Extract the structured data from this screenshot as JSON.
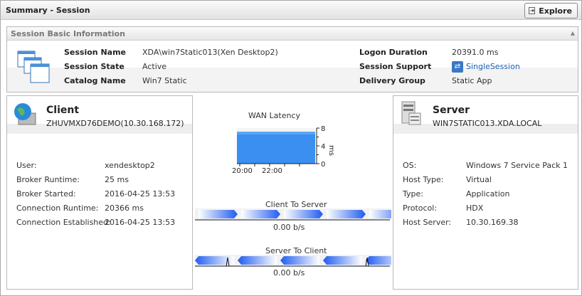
{
  "header": {
    "title": "Summary  - Session",
    "explore_label": "Explore"
  },
  "basic": {
    "title": "Session Basic Information",
    "left": [
      {
        "label": "Session Name",
        "value": "XDA\\win7Static013(Xen Desktop2)"
      },
      {
        "label": "Session State",
        "value": "Active"
      },
      {
        "label": "Catalog Name",
        "value": "Win7 Static"
      }
    ],
    "right": [
      {
        "label": "Logon Duration",
        "value": "20391.0 ms"
      },
      {
        "label": "Session Support",
        "value": "SingleSession",
        "icon": "session-support-icon"
      },
      {
        "label": "Delivery Group",
        "value": "Static App"
      }
    ]
  },
  "client": {
    "title": "Client",
    "subtitle": "ZHUVMXD76DEMO(10.30.168.172)",
    "rows": [
      {
        "label": "User:",
        "value": "xendesktop2"
      },
      {
        "label": "Broker Runtime:",
        "value": "25 ms"
      },
      {
        "label": "Broker Started:",
        "value": "2016-04-25 13:53"
      },
      {
        "label": "Connection Runtime:",
        "value": "20366 ms"
      },
      {
        "label": "Connection Established:",
        "value": "2016-04-25 13:53"
      }
    ]
  },
  "server": {
    "title": "Server",
    "subtitle": "WIN7STATIC013.XDA.LOCAL",
    "rows": [
      {
        "label": "OS:",
        "value": "Windows 7 Service Pack 1"
      },
      {
        "label": "Host Type:",
        "value": "Virtual"
      },
      {
        "label": "Type:",
        "value": "Application"
      },
      {
        "label": "Protocol:",
        "value": "HDX"
      },
      {
        "label": "Host Server:",
        "value": "10.30.169.38"
      }
    ]
  },
  "chart_data": {
    "type": "area",
    "title": "WAN Latency",
    "ylabel": "ms",
    "ylim": [
      0,
      8
    ],
    "yticks": [
      "0",
      "4",
      "8"
    ],
    "xticks": [
      "20:00",
      "22:00"
    ],
    "values": [
      7.2,
      7.2
    ],
    "color": "#3a8ff0"
  },
  "flows": [
    {
      "title": "Client To Server",
      "value": "0.00 b/s",
      "direction": "right"
    },
    {
      "title": "Server To Client",
      "value": "0.00 b/s",
      "direction": "left"
    }
  ]
}
